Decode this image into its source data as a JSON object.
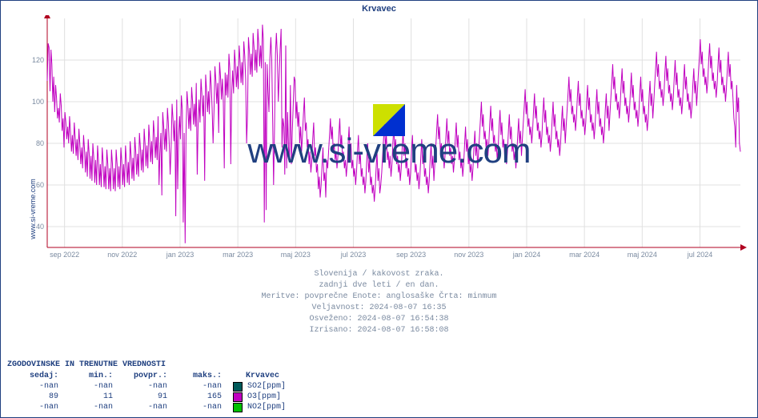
{
  "site_label": "www.si-vreme.com",
  "watermark_text": "www.si-vreme.com",
  "chart": {
    "title": "Krvavec",
    "type": "line",
    "background_color": "#ffffff",
    "grid_color": "#e0e0e0",
    "axis_color": "#b00020",
    "series_color": "#c000c0",
    "title_color": "#204080",
    "meta_color": "#7a8aa0",
    "tick_fontsize": 9,
    "title_fontsize": 11,
    "meta_fontsize": 10,
    "ylim": [
      30,
      140
    ],
    "yticks": [
      40,
      60,
      80,
      100,
      120
    ],
    "xlabels": [
      "sep 2022",
      "nov 2022",
      "jan 2023",
      "mar 2023",
      "maj 2023",
      "jul 2023",
      "sep 2023",
      "nov 2023",
      "jan 2024",
      "mar 2024",
      "maj 2024",
      "jul 2024"
    ],
    "n_points": 730,
    "series": [
      110,
      128,
      126,
      105,
      125,
      118,
      100,
      112,
      95,
      108,
      102,
      92,
      97,
      90,
      104,
      98,
      86,
      92,
      78,
      95,
      90,
      82,
      88,
      80,
      93,
      85,
      76,
      84,
      75,
      90,
      83,
      74,
      82,
      72,
      87,
      80,
      70,
      78,
      68,
      84,
      77,
      66,
      76,
      64,
      82,
      75,
      63,
      74,
      62,
      80,
      73,
      61,
      72,
      60,
      79,
      72,
      60,
      70,
      59,
      78,
      71,
      59,
      69,
      58,
      77,
      70,
      58,
      68,
      57,
      77,
      70,
      58,
      68,
      57,
      77,
      70,
      59,
      69,
      58,
      78,
      71,
      60,
      70,
      59,
      79,
      72,
      61,
      71,
      60,
      81,
      74,
      63,
      73,
      62,
      83,
      76,
      65,
      75,
      64,
      85,
      78,
      67,
      77,
      66,
      87,
      80,
      69,
      79,
      68,
      89,
      82,
      71,
      81,
      70,
      91,
      84,
      73,
      83,
      72,
      93,
      60,
      75,
      85,
      55,
      95,
      88,
      77,
      87,
      76,
      97,
      90,
      79,
      65,
      78,
      99,
      92,
      81,
      91,
      45,
      101,
      58,
      83,
      93,
      82,
      103,
      96,
      42,
      85,
      32,
      84,
      105,
      98,
      87,
      97,
      86,
      107,
      100,
      89,
      99,
      88,
      109,
      65,
      91,
      101,
      90,
      111,
      104,
      93,
      103,
      62,
      113,
      106,
      95,
      105,
      94,
      115,
      108,
      97,
      80,
      96,
      117,
      110,
      99,
      109,
      85,
      119,
      112,
      101,
      111,
      100,
      68,
      114,
      103,
      113,
      102,
      123,
      116,
      70,
      105,
      115,
      104,
      125,
      118,
      107,
      117,
      106,
      127,
      120,
      109,
      119,
      108,
      129,
      122,
      111,
      80,
      95,
      131,
      124,
      113,
      123,
      112,
      133,
      126,
      115,
      125,
      114,
      135,
      128,
      117,
      127,
      116,
      137,
      130,
      42,
      119,
      48,
      118,
      105,
      95,
      121,
      131,
      120,
      90,
      60,
      88,
      123,
      133,
      122,
      100,
      112,
      125,
      135,
      78,
      92,
      88,
      65,
      127,
      68,
      95,
      78,
      72,
      108,
      70,
      85,
      98,
      112,
      110,
      92,
      100,
      88,
      95,
      80,
      88,
      76,
      84,
      94,
      102,
      86,
      90,
      78,
      82,
      70,
      76,
      66,
      72,
      82,
      90,
      74,
      78,
      66,
      70,
      58,
      64,
      54,
      60,
      70,
      78,
      62,
      66,
      54,
      72,
      68,
      76,
      84,
      92,
      82,
      88,
      76,
      80,
      72,
      76,
      68,
      74,
      84,
      92,
      78,
      84,
      72,
      76,
      68,
      72,
      64,
      70,
      80,
      88,
      74,
      80,
      68,
      72,
      64,
      68,
      60,
      66,
      76,
      84,
      70,
      76,
      64,
      68,
      60,
      64,
      56,
      62,
      72,
      80,
      66,
      72,
      60,
      64,
      56,
      60,
      52,
      58,
      68,
      76,
      62,
      68,
      56,
      60,
      66,
      74,
      82,
      90,
      78,
      84,
      72,
      76,
      68,
      74,
      64,
      70,
      80,
      88,
      76,
      82,
      70,
      74,
      66,
      70,
      62,
      68,
      78,
      86,
      74,
      80,
      68,
      72,
      64,
      68,
      60,
      66,
      76,
      84,
      72,
      78,
      66,
      70,
      62,
      66,
      58,
      64,
      74,
      82,
      70,
      76,
      64,
      68,
      60,
      64,
      56,
      62,
      72,
      80,
      68,
      74,
      62,
      70,
      78,
      86,
      94,
      82,
      88,
      76,
      80,
      72,
      76,
      68,
      74,
      84,
      92,
      80,
      86,
      74,
      78,
      70,
      74,
      66,
      72,
      82,
      90,
      78,
      84,
      72,
      76,
      68,
      72,
      64,
      70,
      80,
      88,
      76,
      82,
      70,
      74,
      66,
      70,
      62,
      68,
      78,
      86,
      74,
      80,
      68,
      76,
      84,
      92,
      100,
      88,
      94,
      82,
      86,
      78,
      82,
      74,
      80,
      90,
      98,
      86,
      92,
      80,
      84,
      76,
      80,
      72,
      78,
      88,
      96,
      84,
      90,
      78,
      82,
      74,
      78,
      70,
      76,
      86,
      94,
      82,
      88,
      76,
      80,
      72,
      76,
      68,
      74,
      84,
      92,
      80,
      86,
      74,
      82,
      90,
      98,
      106,
      94,
      100,
      88,
      92,
      84,
      88,
      80,
      86,
      96,
      104,
      92,
      98,
      86,
      90,
      82,
      86,
      78,
      84,
      94,
      102,
      90,
      96,
      84,
      88,
      80,
      84,
      76,
      82,
      92,
      100,
      88,
      94,
      82,
      86,
      78,
      82,
      74,
      80,
      90,
      98,
      86,
      92,
      80,
      88,
      96,
      104,
      112,
      100,
      106,
      94,
      98,
      90,
      94,
      86,
      92,
      102,
      110,
      98,
      104,
      92,
      96,
      88,
      92,
      84,
      90,
      100,
      108,
      96,
      102,
      90,
      94,
      86,
      90,
      82,
      88,
      98,
      106,
      94,
      100,
      88,
      92,
      84,
      88,
      80,
      86,
      96,
      104,
      92,
      98,
      86,
      94,
      102,
      110,
      118,
      106,
      112,
      100,
      104,
      96,
      100,
      92,
      98,
      108,
      116,
      104,
      110,
      98,
      102,
      94,
      98,
      90,
      96,
      106,
      114,
      102,
      108,
      96,
      100,
      92,
      96,
      88,
      94,
      104,
      112,
      100,
      106,
      94,
      98,
      90,
      94,
      86,
      92,
      102,
      110,
      98,
      104,
      92,
      100,
      108,
      116,
      124,
      112,
      118,
      106,
      110,
      102,
      106,
      98,
      104,
      114,
      122,
      110,
      116,
      104,
      108,
      100,
      104,
      96,
      102,
      112,
      120,
      108,
      114,
      102,
      106,
      98,
      102,
      94,
      100,
      110,
      118,
      106,
      112,
      100,
      104,
      96,
      100,
      92,
      98,
      108,
      116,
      104,
      110,
      98,
      106,
      114,
      122,
      130,
      118,
      124,
      112,
      116,
      108,
      112,
      104,
      110,
      120,
      128,
      116,
      122,
      110,
      114,
      106,
      110,
      102,
      108,
      118,
      126,
      114,
      120,
      108,
      112,
      104,
      108,
      100,
      106,
      116,
      124,
      112,
      118,
      106,
      110,
      102,
      92,
      88,
      78,
      108,
      95,
      102,
      80,
      76
    ]
  },
  "meta_lines": [
    "Slovenija / kakovost zraka.",
    "zadnji dve leti / en dan.",
    "Meritve: povprečne  Enote: anglosaške  Črta: minmum",
    "Veljavnost: 2024-08-07 16:35",
    "Osveženo: 2024-08-07 16:54:38",
    "Izrisano: 2024-08-07 16:58:08"
  ],
  "table": {
    "title": "ZGODOVINSKE IN TRENUTNE VREDNOSTI",
    "headers": [
      "sedaj:",
      "min.:",
      "povpr.:",
      "maks.:"
    ],
    "rows": [
      {
        "cells": [
          "-nan",
          "-nan",
          "-nan",
          "-nan"
        ],
        "swatch": "#005a5a",
        "label": "SO2[ppm]"
      },
      {
        "cells": [
          "89",
          "11",
          "91",
          "165"
        ],
        "swatch": "#c000c0",
        "label": "O3[ppm]"
      },
      {
        "cells": [
          "-nan",
          "-nan",
          "-nan",
          "-nan"
        ],
        "swatch": "#00c000",
        "label": "NO2[ppm]"
      }
    ]
  }
}
